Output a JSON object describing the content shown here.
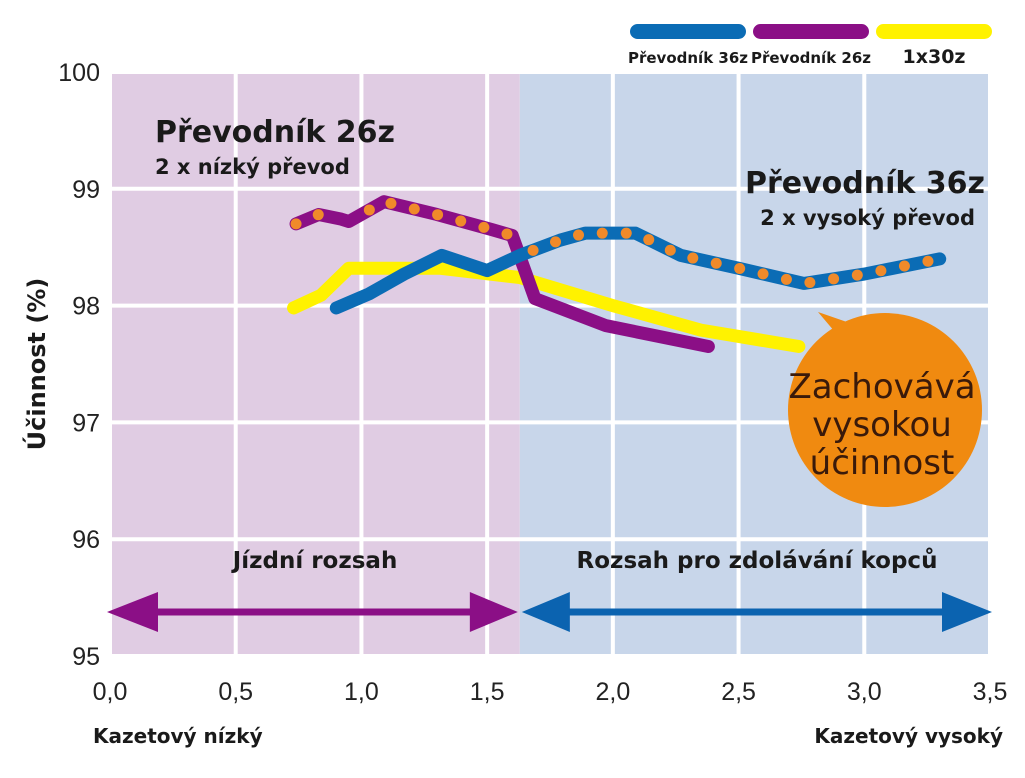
{
  "chart_data": {
    "type": "line",
    "ylabel": "Účinnost (%)",
    "xlabel_left": "Kazetový nízký",
    "xlabel_right": "Kazetový vysoký",
    "xlim": [
      0,
      3.5
    ],
    "ylim": [
      95,
      100
    ],
    "xticks": [
      "0,0",
      "0,5",
      "1,0",
      "1,5",
      "2,0",
      "2,5",
      "3,0",
      "3,5"
    ],
    "yticks": [
      "95",
      "96",
      "97",
      "98",
      "99",
      "100"
    ],
    "grid": true,
    "legend_position": "top-right",
    "regions": [
      {
        "label": "Jízdní rozsah",
        "from": 0,
        "to": 1.63,
        "color": "#e0cce3",
        "arrow_color": "#8b0f86"
      },
      {
        "label": "Rozsah pro zdolávání kopců",
        "from": 1.63,
        "to": 3.5,
        "color": "#c8d6ea",
        "arrow_color": "#0b63b0"
      }
    ],
    "annotations": {
      "left_title": "Převodník 26z",
      "left_subtitle": "2 x nízký převod",
      "right_title": "Převodník 36z",
      "right_subtitle": "2 x vysoký převod",
      "bubble": [
        "Zachovává",
        "vysokou",
        "účinnost"
      ]
    },
    "series": [
      {
        "name": "Převodník 36z",
        "color": "#0b6cb5",
        "x": [
          0.9,
          1.03,
          1.17,
          1.32,
          1.5,
          1.63,
          1.79,
          1.89,
          2.09,
          2.27,
          2.5,
          2.76,
          3.0,
          3.3
        ],
        "y": [
          97.98,
          98.1,
          98.27,
          98.43,
          98.3,
          98.43,
          98.56,
          98.62,
          98.62,
          98.43,
          98.32,
          98.19,
          98.27,
          98.4
        ],
        "dotted_from": 1.63
      },
      {
        "name": "Převodník 26z",
        "color": "#8b0f86",
        "x": [
          0.74,
          0.83,
          0.92,
          0.95,
          1.09,
          1.3,
          1.52,
          1.6,
          1.69,
          1.97,
          2.15,
          2.38
        ],
        "y": [
          98.7,
          98.78,
          98.74,
          98.72,
          98.89,
          98.78,
          98.65,
          98.6,
          98.06,
          97.83,
          97.75,
          97.65
        ],
        "dotted_to": 1.6
      },
      {
        "name": "1x30z",
        "color": "#fff200",
        "x": [
          0.73,
          0.84,
          0.95,
          1.31,
          1.63,
          2.0,
          2.35,
          2.74
        ],
        "y": [
          97.98,
          98.09,
          98.32,
          98.32,
          98.24,
          98.0,
          97.79,
          97.65
        ]
      }
    ]
  }
}
